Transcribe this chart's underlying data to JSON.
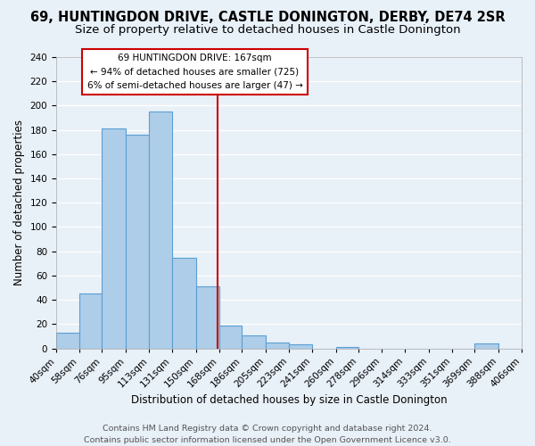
{
  "title_line1": "69, HUNTINGDON DRIVE, CASTLE DONINGTON, DERBY, DE74 2SR",
  "title_line2": "Size of property relative to detached houses in Castle Donington",
  "xlabel": "Distribution of detached houses by size in Castle Donington",
  "ylabel": "Number of detached properties",
  "bar_edges": [
    40,
    58,
    76,
    95,
    113,
    131,
    150,
    168,
    186,
    205,
    223,
    241,
    260,
    278,
    296,
    314,
    333,
    351,
    369,
    388,
    406
  ],
  "bar_heights": [
    13,
    45,
    181,
    176,
    195,
    75,
    51,
    19,
    11,
    5,
    3,
    0,
    1,
    0,
    0,
    0,
    0,
    0,
    4,
    0
  ],
  "bar_color": "#aecde8",
  "bar_edge_color": "#5a9fd4",
  "reference_line_x": 167,
  "reference_line_color": "#cc0000",
  "ylim": [
    0,
    240
  ],
  "yticks": [
    0,
    20,
    40,
    60,
    80,
    100,
    120,
    140,
    160,
    180,
    200,
    220,
    240
  ],
  "tick_labels": [
    "40sqm",
    "58sqm",
    "76sqm",
    "95sqm",
    "113sqm",
    "131sqm",
    "150sqm",
    "168sqm",
    "186sqm",
    "205sqm",
    "223sqm",
    "241sqm",
    "260sqm",
    "278sqm",
    "296sqm",
    "314sqm",
    "333sqm",
    "351sqm",
    "369sqm",
    "388sqm",
    "406sqm"
  ],
  "annotation_title": "69 HUNTINGDON DRIVE: 167sqm",
  "annotation_line2": "← 94% of detached houses are smaller (725)",
  "annotation_line3": "6% of semi-detached houses are larger (47) →",
  "annotation_box_color": "#ffffff",
  "annotation_box_edge": "#cc0000",
  "footer_line1": "Contains HM Land Registry data © Crown copyright and database right 2024.",
  "footer_line2": "Contains public sector information licensed under the Open Government Licence v3.0.",
  "background_color": "#e8f0f8",
  "grid_color": "#ffffff",
  "title_fontsize": 10.5,
  "subtitle_fontsize": 9.5,
  "tick_fontsize": 7.5,
  "ylabel_fontsize": 8.5,
  "xlabel_fontsize": 8.5,
  "footer_fontsize": 6.8
}
